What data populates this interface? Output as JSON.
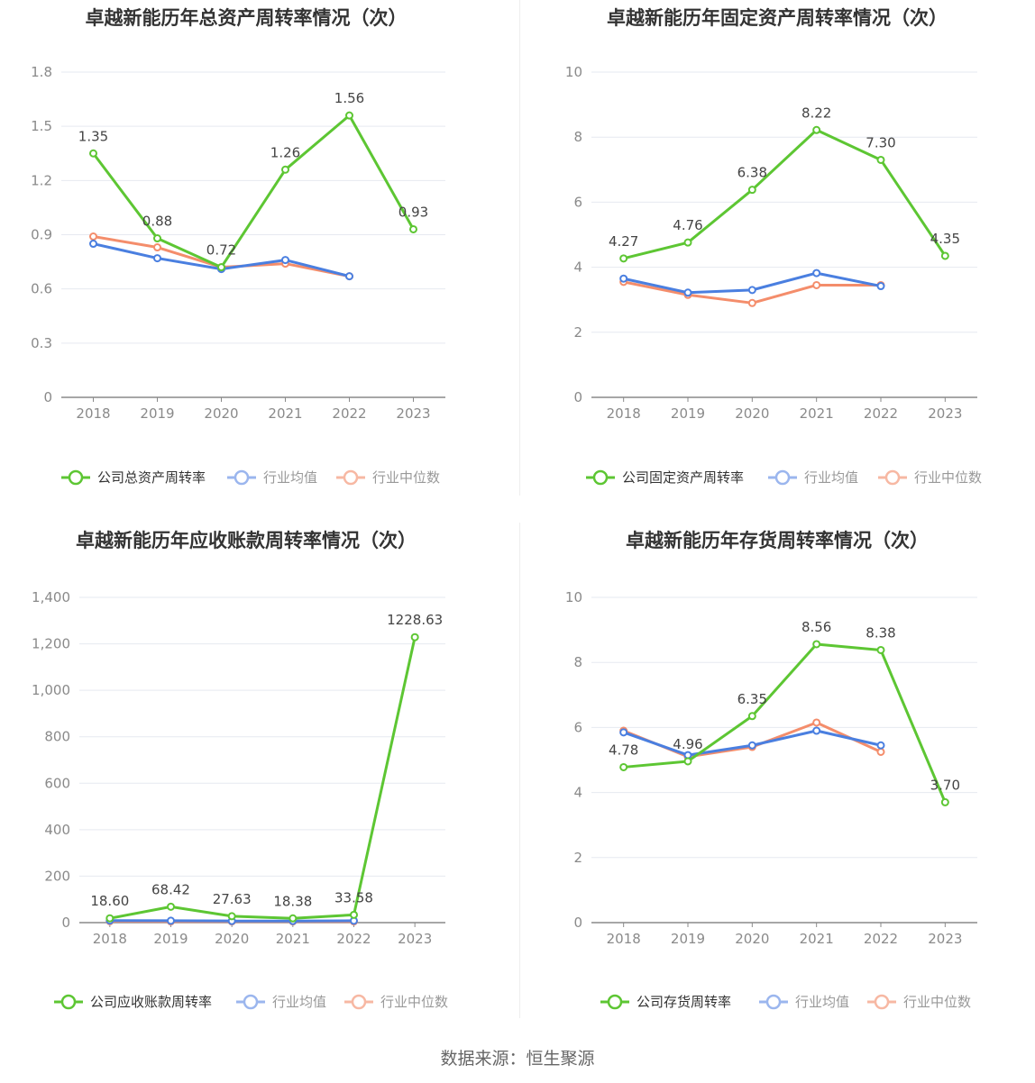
{
  "source": "数据来源：恒生聚源",
  "colors": {
    "company": "#5dc633",
    "avg": "#4a7fe0",
    "median": "#f48d6b",
    "legend_avg": "#9bb6ee",
    "legend_median": "#f7b8a3"
  },
  "chart_data": [
    {
      "type": "line",
      "title": "卓越新能历年总资产周转率情况（次）",
      "categories": [
        "2018",
        "2019",
        "2020",
        "2021",
        "2022",
        "2023"
      ],
      "yticks": [
        "0",
        "0.3",
        "0.6",
        "0.9",
        "1.2",
        "1.5",
        "1.8"
      ],
      "ylim": [
        0,
        1.8
      ],
      "series": [
        {
          "name": "公司总资产周转率",
          "values": [
            1.35,
            0.88,
            0.72,
            1.26,
            1.56,
            0.93
          ],
          "labels": [
            "1.35",
            "0.88",
            "0.72",
            "1.26",
            "1.56",
            "0.93"
          ]
        },
        {
          "name": "行业均值",
          "values": [
            0.85,
            0.77,
            0.71,
            0.76,
            0.67,
            null
          ]
        },
        {
          "name": "行业中位数",
          "values": [
            0.89,
            0.83,
            0.72,
            0.74,
            0.67,
            null
          ]
        }
      ]
    },
    {
      "type": "line",
      "title": "卓越新能历年固定资产周转率情况（次）",
      "categories": [
        "2018",
        "2019",
        "2020",
        "2021",
        "2022",
        "2023"
      ],
      "yticks": [
        "0",
        "2",
        "4",
        "6",
        "8",
        "10"
      ],
      "ylim": [
        0,
        10
      ],
      "series": [
        {
          "name": "公司固定资产周转率",
          "values": [
            4.27,
            4.76,
            6.38,
            8.22,
            7.3,
            4.35
          ],
          "labels": [
            "4.27",
            "4.76",
            "6.38",
            "8.22",
            "7.30",
            "4.35"
          ]
        },
        {
          "name": "行业均值",
          "values": [
            3.65,
            3.22,
            3.3,
            3.82,
            3.42,
            null
          ]
        },
        {
          "name": "行业中位数",
          "values": [
            3.55,
            3.15,
            2.9,
            3.45,
            3.45,
            null
          ]
        }
      ]
    },
    {
      "type": "line",
      "title": "卓越新能历年应收账款周转率情况（次）",
      "categories": [
        "2018",
        "2019",
        "2020",
        "2021",
        "2022",
        "2023"
      ],
      "yticks": [
        "0",
        "200",
        "400",
        "600",
        "800",
        "1,000",
        "1,200",
        "1,400"
      ],
      "ylim": [
        0,
        1400
      ],
      "series": [
        {
          "name": "公司应收账款周转率",
          "values": [
            18.6,
            68.42,
            27.63,
            18.38,
            33.58,
            1228.63
          ],
          "labels": [
            "18.60",
            "68.42",
            "27.63",
            "18.38",
            "33.58",
            "1228.63"
          ]
        },
        {
          "name": "行业均值",
          "values": [
            9,
            8,
            7,
            7,
            8,
            null
          ]
        },
        {
          "name": "行业中位数",
          "values": [
            6,
            5,
            5,
            5,
            5,
            null
          ]
        }
      ]
    },
    {
      "type": "line",
      "title": "卓越新能历年存货周转率情况（次）",
      "categories": [
        "2018",
        "2019",
        "2020",
        "2021",
        "2022",
        "2023"
      ],
      "yticks": [
        "0",
        "2",
        "4",
        "6",
        "8",
        "10"
      ],
      "ylim": [
        0,
        10
      ],
      "series": [
        {
          "name": "公司存货周转率",
          "values": [
            4.78,
            4.96,
            6.35,
            8.56,
            8.38,
            3.7
          ],
          "labels": [
            "4.78",
            "4.96",
            "6.35",
            "8.56",
            "8.38",
            "3.70"
          ]
        },
        {
          "name": "行业均值",
          "values": [
            5.85,
            5.15,
            5.45,
            5.9,
            5.45,
            null
          ]
        },
        {
          "name": "行业中位数",
          "values": [
            5.9,
            5.1,
            5.4,
            6.15,
            5.25,
            null
          ]
        }
      ]
    }
  ]
}
